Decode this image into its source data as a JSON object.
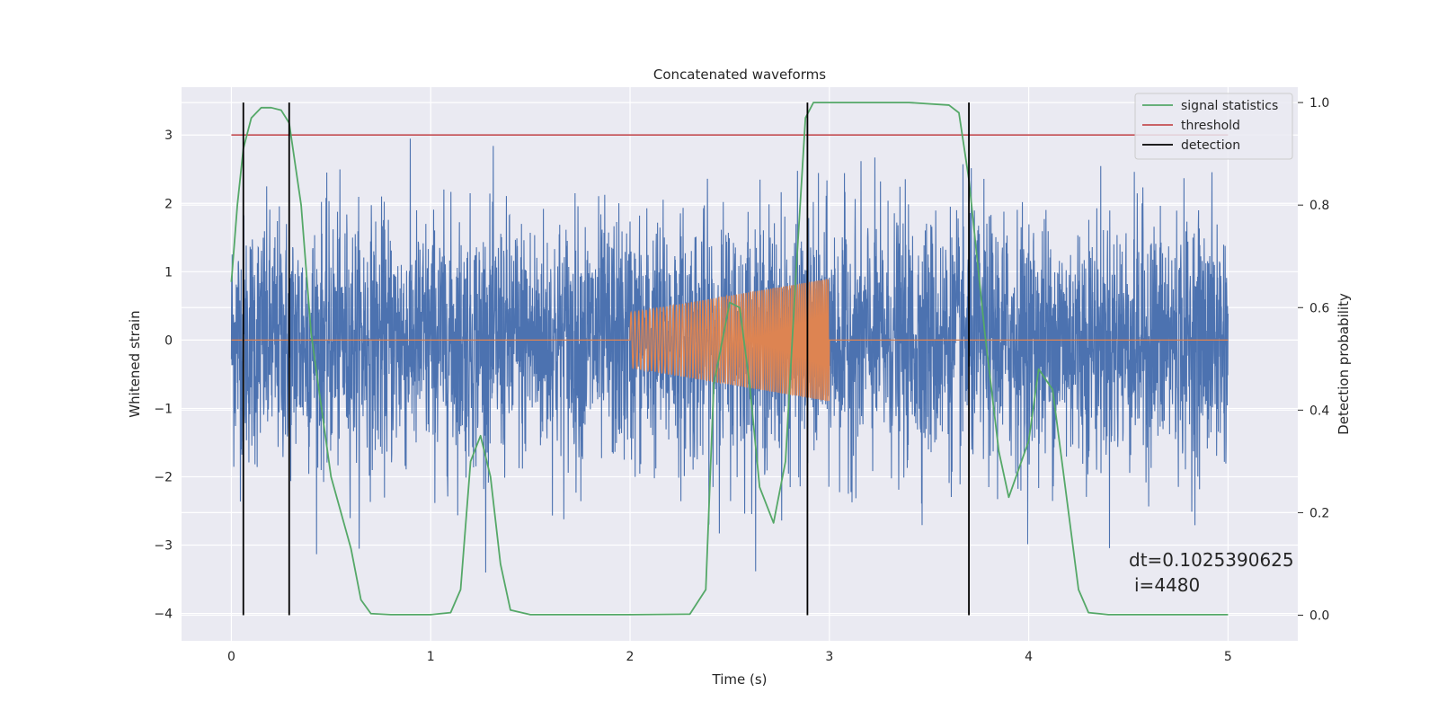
{
  "chart_data": {
    "type": "line",
    "title": "Concatenated waveforms",
    "xlabel": "Time (s)",
    "ylabel": "Whitened strain",
    "ylabel_right": "Detection probability",
    "xlim": [
      -0.25,
      5.35
    ],
    "ylim": [
      -4.4,
      3.7
    ],
    "ylim_right": [
      -0.05,
      1.03
    ],
    "x_ticks": [
      0,
      1,
      2,
      3,
      4,
      5
    ],
    "y_ticks": [
      -4,
      -3,
      -2,
      -1,
      0,
      1,
      2,
      3
    ],
    "y_ticks_right": [
      0.0,
      0.2,
      0.4,
      0.6,
      0.8,
      1.0
    ],
    "x_tick_labels": [
      "0",
      "1",
      "2",
      "3",
      "4",
      "5"
    ],
    "y_tick_labels": [
      "−4",
      "−3",
      "−2",
      "−1",
      "0",
      "1",
      "2",
      "3"
    ],
    "y_tick_labels_right": [
      "0.0",
      "0.2",
      "0.4",
      "0.6",
      "0.8",
      "1.0"
    ],
    "grid": true,
    "legend_position": "top-right",
    "legend": [
      {
        "label": "signal statistics",
        "color": "#55a868"
      },
      {
        "label": "threshold",
        "color": "#c44e52"
      },
      {
        "label": "detection",
        "color": "#000000"
      }
    ],
    "colors": {
      "strain": "#4c72b0",
      "injection": "#dd8452",
      "signal_statistics": "#55a868",
      "threshold": "#c44e52",
      "detection": "#000000",
      "plot_background": "#eaeaf2",
      "grid": "#ffffff"
    },
    "threshold": {
      "x": [
        0,
        5
      ],
      "y": 3.0
    },
    "detections": [
      0.06,
      0.29,
      2.89,
      3.7
    ],
    "strain_series": {
      "x_range": [
        0,
        5
      ],
      "std": 0.9,
      "max_abs": 3.4
    },
    "injection_series": {
      "x_range": [
        2,
        3
      ],
      "amplitude_range": [
        0.4,
        0.9
      ],
      "cycles": 50
    },
    "signal_statistics": {
      "x": [
        0,
        0.03,
        0.06,
        0.1,
        0.15,
        0.2,
        0.25,
        0.29,
        0.35,
        0.4,
        0.5,
        0.6,
        0.65,
        0.7,
        0.8,
        1.0,
        1.1,
        1.15,
        1.18,
        1.2,
        1.25,
        1.3,
        1.35,
        1.4,
        1.5,
        2.0,
        2.3,
        2.38,
        2.42,
        2.5,
        2.55,
        2.6,
        2.65,
        2.72,
        2.78,
        2.83,
        2.88,
        2.92,
        3.0,
        3.4,
        3.6,
        3.65,
        3.7,
        3.78,
        3.85,
        3.9,
        4.0,
        4.05,
        4.12,
        4.2,
        4.25,
        4.3,
        4.4,
        5.0
      ],
      "y": [
        0.65,
        0.8,
        0.91,
        0.97,
        0.99,
        0.99,
        0.985,
        0.96,
        0.8,
        0.55,
        0.27,
        0.13,
        0.03,
        0.003,
        0.001,
        0.001,
        0.005,
        0.05,
        0.2,
        0.3,
        0.35,
        0.27,
        0.1,
        0.01,
        0.001,
        0.001,
        0.002,
        0.05,
        0.45,
        0.61,
        0.6,
        0.45,
        0.25,
        0.18,
        0.3,
        0.65,
        0.97,
        1.0,
        1.0,
        1.0,
        0.995,
        0.98,
        0.85,
        0.55,
        0.32,
        0.23,
        0.34,
        0.48,
        0.44,
        0.2,
        0.05,
        0.005,
        0.001,
        0.001
      ]
    },
    "annotation": [
      "dt=0.1025390625",
      "i=4480"
    ]
  }
}
